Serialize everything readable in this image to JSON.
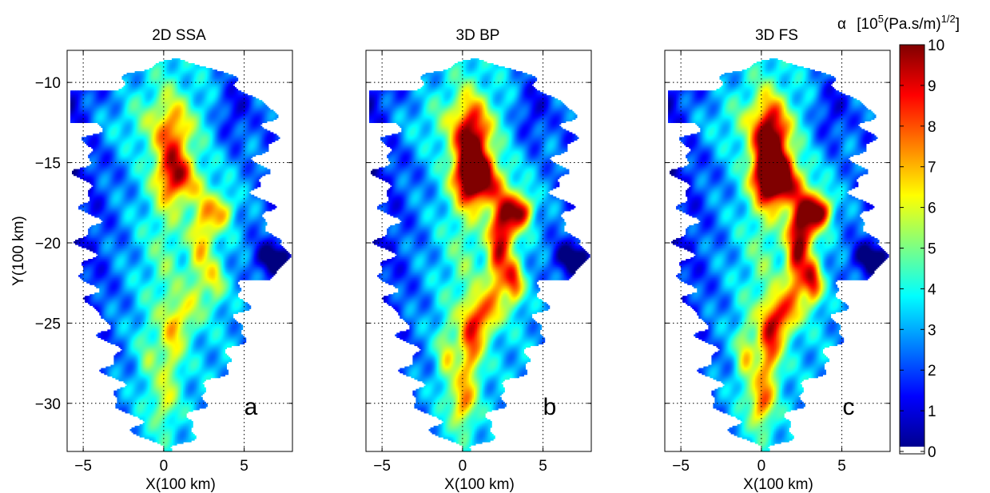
{
  "chart_data": {
    "type": "heatmap",
    "panels": [
      {
        "title": "2D SSA",
        "letter": "a",
        "hot_scale": 0.55
      },
      {
        "title": "3D BP",
        "letter": "b",
        "hot_scale": 1.0
      },
      {
        "title": "3D FS",
        "letter": "c",
        "hot_scale": 1.12
      }
    ],
    "xlabel": "X(100 km)",
    "ylabel": "Y(100 km)",
    "xlim": [
      -6,
      8
    ],
    "ylim": [
      -33,
      -8
    ],
    "xticks": [
      -5,
      0,
      5
    ],
    "yticks": [
      -10,
      -15,
      -20,
      -25,
      -30
    ],
    "tick_labels": {
      "x": [
        "−5",
        "0",
        "5"
      ],
      "y": [
        "−10",
        "−15",
        "−20",
        "−25",
        "−30"
      ]
    },
    "grid": true,
    "colorbar": {
      "label_greek": "α",
      "label_open": "[10",
      "label_sup1": "5",
      "label_mid": "(Pa.s/m)",
      "label_sup2": "1/2",
      "label_close": "]",
      "range": [
        0,
        10
      ],
      "ticks": [
        "0",
        "1",
        "2",
        "3",
        "4",
        "5",
        "6",
        "7",
        "8",
        "9",
        "10"
      ],
      "colormap": "jet"
    }
  }
}
